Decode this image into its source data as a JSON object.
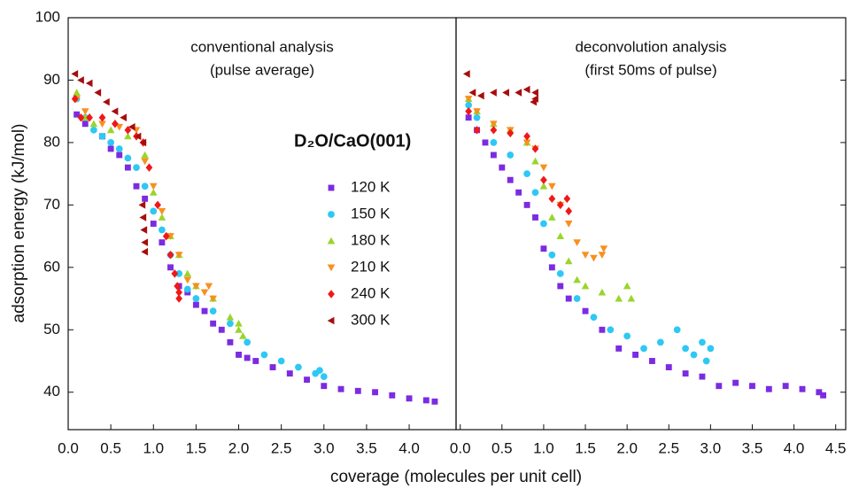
{
  "chart_data": [
    {
      "type": "scatter",
      "ylabel": "adsorption energy (kJ/mol)",
      "xlabel": "coverage (molecules per unit cell)",
      "annotations": [
        "conventional analysis",
        "(pulse average)"
      ],
      "legend_title": "D₂O/CaO(001)",
      "xlim": [
        0,
        4.55
      ],
      "xticks": [
        {
          "value": 0,
          "label": "0.0"
        },
        0.5,
        {
          "value": 1,
          "label": "1.0"
        },
        1.5,
        {
          "value": 2,
          "label": "2.0"
        },
        2.5,
        {
          "value": 3,
          "label": "3.0"
        },
        3.5,
        {
          "value": 4,
          "label": "4.0"
        }
      ],
      "ylim": [
        34,
        100
      ],
      "yticks": [
        40,
        50,
        60,
        70,
        80,
        90,
        100
      ],
      "series": [
        {
          "name": "120 K",
          "color": "#7b2be0",
          "marker": "square",
          "x": [
            0.1,
            0.2,
            0.4,
            0.5,
            0.6,
            0.7,
            0.8,
            0.9,
            1.0,
            1.1,
            1.2,
            1.3,
            1.4,
            1.5,
            1.6,
            1.7,
            1.8,
            1.9,
            2.0,
            2.1,
            2.2,
            2.4,
            2.6,
            2.8,
            3.0,
            3.2,
            3.4,
            3.6,
            3.8,
            4.0,
            4.2,
            4.3
          ],
          "values": [
            84.5,
            83,
            81,
            79,
            78,
            76,
            73,
            71,
            67,
            64,
            60,
            57,
            56,
            54,
            53,
            51,
            50,
            48,
            46,
            45.5,
            45,
            44,
            43,
            42,
            41,
            40.5,
            40.2,
            40,
            39.5,
            39,
            38.7,
            38.5
          ]
        },
        {
          "name": "150 K",
          "color": "#2ec8f5",
          "marker": "circle",
          "x": [
            0.1,
            0.2,
            0.3,
            0.4,
            0.5,
            0.6,
            0.7,
            0.8,
            0.9,
            1.0,
            1.1,
            1.2,
            1.3,
            1.4,
            1.5,
            1.7,
            1.9,
            2.1,
            2.3,
            2.5,
            2.7,
            2.9,
            3.0,
            2.95
          ],
          "values": [
            87,
            84,
            82,
            81,
            80,
            79,
            77.5,
            76,
            73,
            69,
            66,
            62,
            59,
            56.5,
            55,
            53,
            51,
            48,
            46,
            45,
            44,
            43,
            42.5,
            43.5
          ]
        },
        {
          "name": "180 K",
          "color": "#9ad52c",
          "marker": "triangle-up",
          "x": [
            0.1,
            0.2,
            0.3,
            0.5,
            0.7,
            0.9,
            1.0,
            1.1,
            1.2,
            1.3,
            1.4,
            1.5,
            1.7,
            1.9,
            2.0,
            2.05,
            2.0
          ],
          "values": [
            88,
            84,
            83,
            82,
            81,
            78,
            72,
            68,
            65,
            62,
            59,
            57,
            55,
            52,
            50,
            49,
            51
          ]
        },
        {
          "name": "210 K",
          "color": "#f7901e",
          "marker": "triangle-down",
          "x": [
            0.1,
            0.2,
            0.4,
            0.6,
            0.8,
            0.9,
            1.0,
            1.1,
            1.2,
            1.3,
            1.4,
            1.5,
            1.6,
            1.7,
            1.65
          ],
          "values": [
            87,
            85,
            83,
            82.5,
            82,
            77,
            73,
            69,
            65,
            62,
            58,
            57,
            56,
            55,
            57
          ]
        },
        {
          "name": "240 K",
          "color": "#f01818",
          "marker": "diamond",
          "x": [
            0.08,
            0.15,
            0.25,
            0.4,
            0.55,
            0.7,
            0.8,
            0.88,
            0.95,
            1.05,
            1.15,
            1.2,
            1.25,
            1.3,
            1.3,
            1.28
          ],
          "values": [
            87,
            84,
            84,
            84,
            83,
            82,
            81,
            80,
            76,
            70,
            65,
            62,
            59,
            56,
            55,
            57
          ]
        },
        {
          "name": "300 K",
          "color": "#a80d0d",
          "marker": "triangle-left",
          "x": [
            0.08,
            0.15,
            0.25,
            0.35,
            0.45,
            0.55,
            0.65,
            0.75,
            0.82,
            0.88,
            0.87,
            0.88,
            0.89,
            0.9,
            0.9
          ],
          "values": [
            91,
            90,
            89.5,
            88,
            86.5,
            85,
            84,
            82.5,
            81,
            80,
            70,
            68,
            66,
            64,
            62.5
          ]
        }
      ]
    },
    {
      "type": "scatter",
      "annotations": [
        "deconvolution analysis",
        "(first 50ms of pulse)"
      ],
      "xlim": [
        -0.05,
        4.62
      ],
      "xticks": [
        {
          "value": 0,
          "label": "0.0"
        },
        0.5,
        {
          "value": 1,
          "label": "1.0"
        },
        1.5,
        {
          "value": 2,
          "label": "2.0"
        },
        2.5,
        {
          "value": 3,
          "label": "3.0"
        },
        3.5,
        {
          "value": 4,
          "label": "4.0"
        },
        4.5
      ],
      "ylim": [
        34,
        100
      ],
      "series": [
        {
          "color": "#7b2be0",
          "marker": "square",
          "x": [
            0.1,
            0.2,
            0.3,
            0.4,
            0.5,
            0.6,
            0.7,
            0.8,
            0.9,
            1.0,
            1.1,
            1.2,
            1.3,
            1.5,
            1.7,
            1.9,
            2.1,
            2.3,
            2.5,
            2.7,
            2.9,
            3.1,
            3.3,
            3.5,
            3.7,
            3.9,
            4.1,
            4.3,
            4.35
          ],
          "values": [
            84,
            82,
            80,
            78,
            76,
            74,
            72,
            70,
            68,
            63,
            60,
            57,
            55,
            53,
            50,
            47,
            46,
            45,
            44,
            43,
            42.5,
            41,
            41.5,
            41,
            40.5,
            41,
            40.5,
            40,
            39.5
          ]
        },
        {
          "color": "#2ec8f5",
          "marker": "circle",
          "x": [
            0.1,
            0.2,
            0.4,
            0.6,
            0.8,
            0.9,
            1.0,
            1.1,
            1.2,
            1.4,
            1.6,
            1.8,
            2.0,
            2.2,
            2.4,
            2.6,
            2.7,
            2.8,
            2.9,
            2.95,
            3.0
          ],
          "values": [
            86,
            84,
            80,
            78,
            75,
            72,
            67,
            62,
            59,
            55,
            52,
            50,
            49,
            47,
            48,
            50,
            47,
            46,
            48,
            45,
            47
          ]
        },
        {
          "color": "#9ad52c",
          "marker": "triangle-up",
          "x": [
            0.1,
            0.2,
            0.4,
            0.6,
            0.8,
            0.9,
            1.0,
            1.1,
            1.2,
            1.3,
            1.4,
            1.5,
            1.7,
            1.9,
            2.0,
            2.05
          ],
          "values": [
            87,
            85,
            83,
            82,
            80,
            77,
            73,
            68,
            65,
            61,
            58,
            57,
            56,
            55,
            57,
            55
          ]
        },
        {
          "color": "#f7901e",
          "marker": "triangle-down",
          "x": [
            0.1,
            0.2,
            0.4,
            0.6,
            0.8,
            0.9,
            1.0,
            1.1,
            1.2,
            1.3,
            1.4,
            1.5,
            1.6,
            1.7,
            1.72
          ],
          "values": [
            87,
            85,
            83,
            82,
            80,
            79,
            76,
            73,
            70,
            67,
            64,
            62,
            61.5,
            62,
            63
          ]
        },
        {
          "color": "#f01818",
          "marker": "diamond",
          "x": [
            0.1,
            0.2,
            0.4,
            0.6,
            0.8,
            0.9,
            1.0,
            1.1,
            1.2,
            1.3,
            1.28
          ],
          "values": [
            85,
            82,
            82,
            81.5,
            81,
            79,
            74,
            71,
            70,
            69,
            71
          ]
        },
        {
          "color": "#a80d0d",
          "marker": "triangle-left",
          "x": [
            0.08,
            0.15,
            0.25,
            0.4,
            0.55,
            0.7,
            0.8,
            0.9,
            0.88,
            0.9
          ],
          "values": [
            91,
            88,
            87.5,
            88,
            88,
            88,
            88.5,
            88,
            86.5,
            87
          ]
        }
      ]
    }
  ]
}
